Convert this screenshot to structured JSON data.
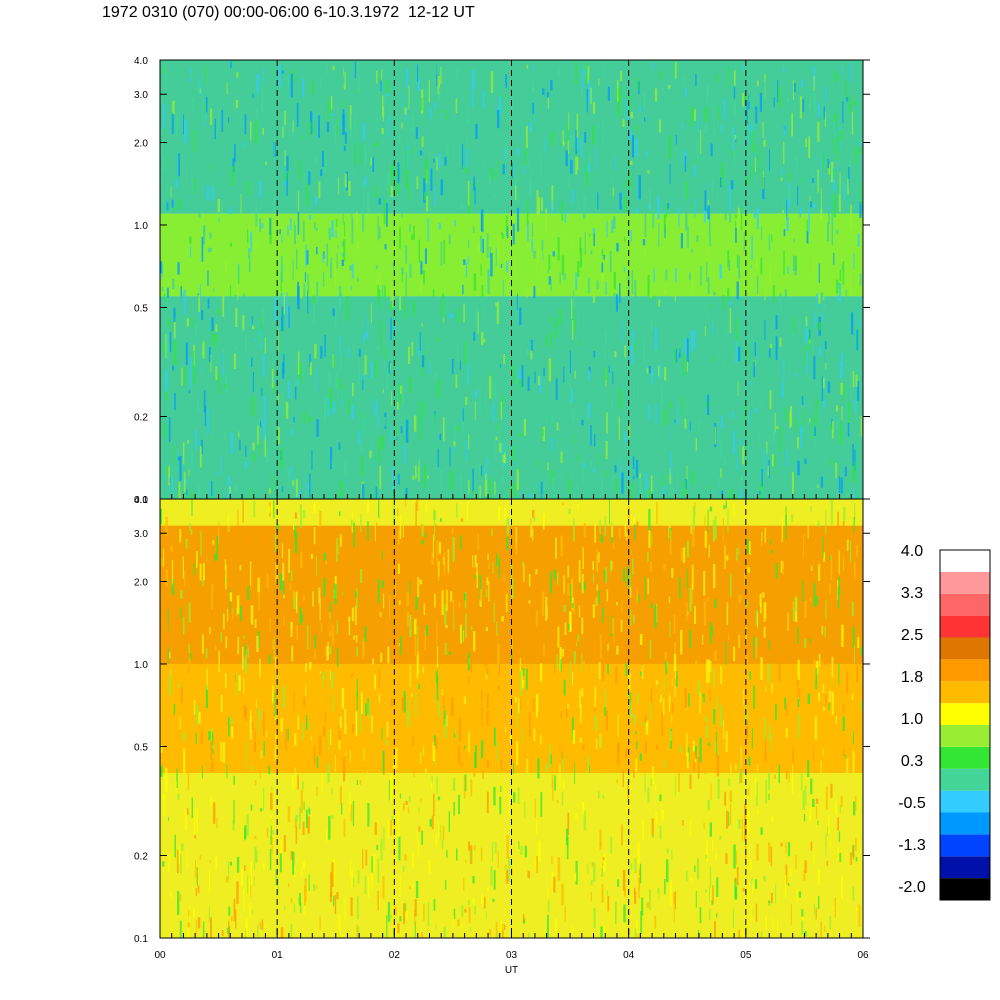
{
  "title": "1972 0310 (070) 00:00-06:00 6-10.3.1972  12-12 UT",
  "chart_data": [
    {
      "type": "heatmap",
      "panel": "upper",
      "x_range": [
        0,
        6
      ],
      "x_tick_labels": [
        "00",
        "01",
        "02",
        "03",
        "04",
        "05",
        "06"
      ],
      "y_scale": "log",
      "ylim": [
        0.1,
        4.0
      ],
      "y_ticks": [
        0.1,
        0.2,
        0.5,
        1.0,
        2.0,
        3.0,
        4.0
      ],
      "y_tick_labels": [
        "0.1",
        "0.2",
        "0.5",
        "1.0",
        "2.0",
        "3.0",
        "4.0"
      ],
      "hour_marker_lines": [
        1,
        2,
        3,
        4,
        5
      ],
      "dominant_colors_by_height": [
        {
          "y_from": 0.1,
          "y_to": 0.55,
          "color": "#44cc99"
        },
        {
          "y_from": 0.55,
          "y_to": 1.1,
          "color": "#88ee33"
        },
        {
          "y_from": 1.1,
          "y_to": 4.0,
          "color": "#44cc99"
        }
      ]
    },
    {
      "type": "heatmap",
      "panel": "lower",
      "x_range": [
        0,
        6
      ],
      "x_tick_labels": [
        "00",
        "01",
        "02",
        "03",
        "04",
        "05",
        "06"
      ],
      "xlabel": "UT",
      "y_scale": "log",
      "ylim": [
        0.1,
        4.0
      ],
      "y_ticks": [
        0.1,
        0.2,
        0.5,
        1.0,
        2.0,
        3.0,
        4.0
      ],
      "y_tick_labels": [
        "0.1",
        "0.2",
        "0.5",
        "1.0",
        "2.0",
        "3.0",
        "4.0"
      ],
      "hour_marker_lines": [
        1,
        2,
        3,
        4,
        5
      ],
      "dominant_colors_by_height": [
        {
          "y_from": 0.1,
          "y_to": 0.4,
          "color": "#eeee22"
        },
        {
          "y_from": 0.4,
          "y_to": 1.0,
          "color": "#ffbb00"
        },
        {
          "y_from": 1.0,
          "y_to": 3.2,
          "color": "#f5a000"
        },
        {
          "y_from": 3.2,
          "y_to": 4.0,
          "color": "#eeee22"
        }
      ]
    }
  ],
  "colorbar": {
    "labels": [
      "4.0",
      "3.3",
      "2.5",
      "1.8",
      "1.0",
      "0.3",
      "-0.5",
      "-1.3",
      "-2.0"
    ],
    "colors": [
      "#000000",
      "#0011aa",
      "#0044ff",
      "#0099ff",
      "#33ccff",
      "#44d699",
      "#33e633",
      "#99ee33",
      "#ffff00",
      "#ffbb00",
      "#ff9900",
      "#dd7700",
      "#ff3333",
      "#ff6666",
      "#ff9999",
      "#ffffff"
    ]
  }
}
